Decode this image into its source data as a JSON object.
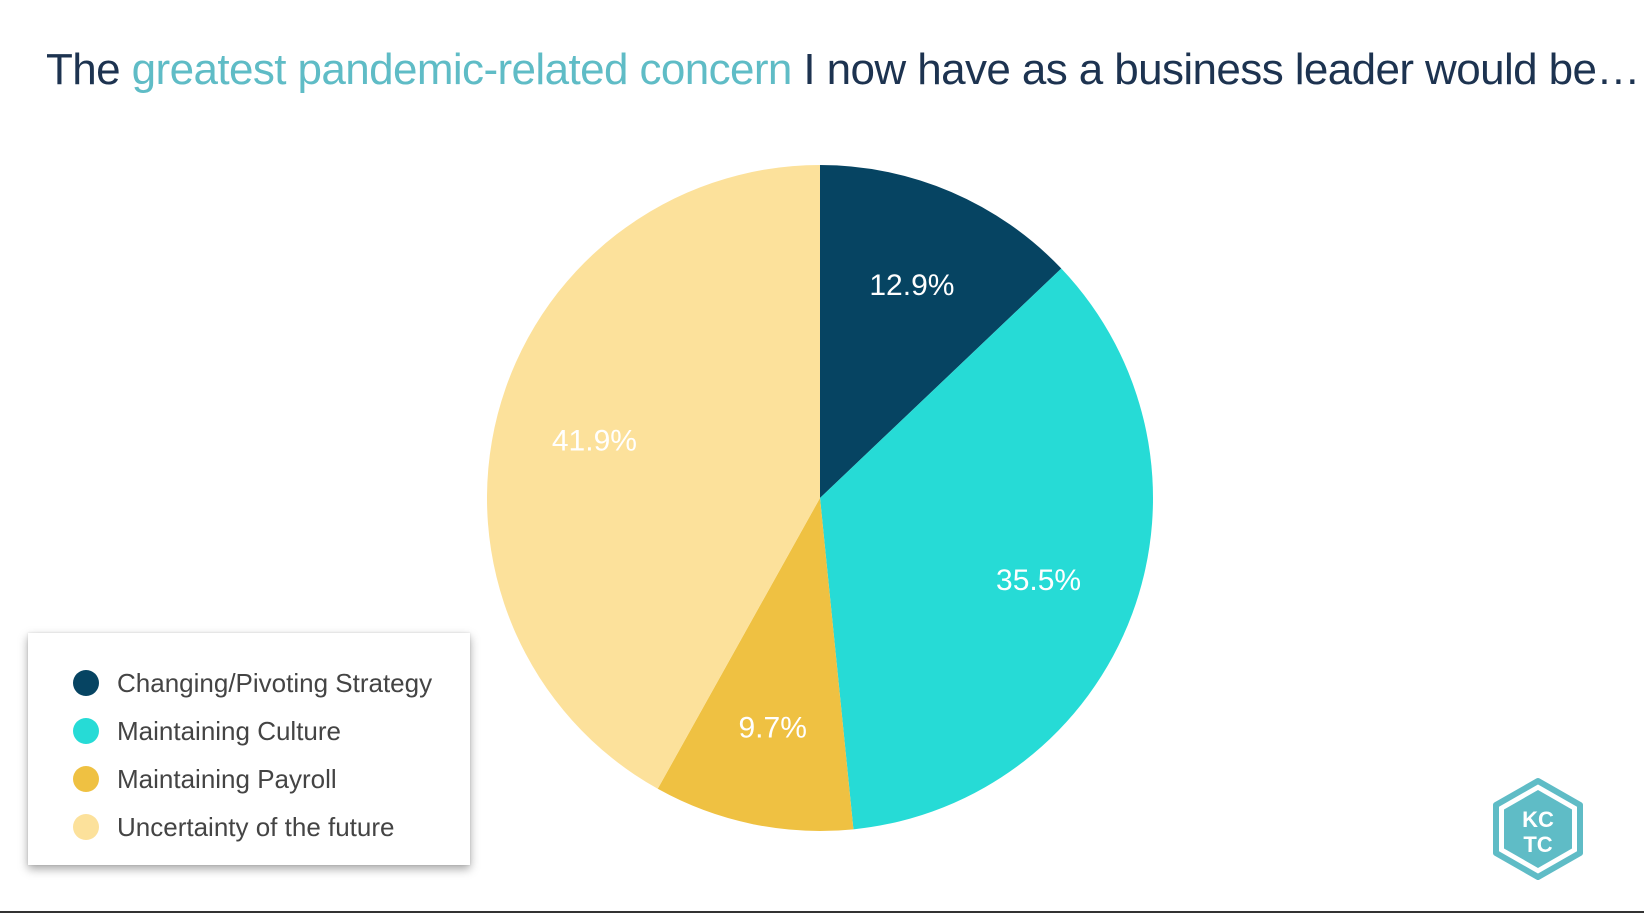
{
  "title": {
    "part1": "The ",
    "highlight": "greatest pandemic-related concern",
    "part2": " I now have as a business leader would be…"
  },
  "colors": {
    "title": "#1d3350",
    "highlight": "#5fbcc6",
    "logo": "#5fbcc6"
  },
  "chart_data": {
    "type": "pie",
    "slices": [
      {
        "label": "Changing/Pivoting Strategy",
        "value": 12.9,
        "display": "12.9%",
        "color": "#064462"
      },
      {
        "label": "Maintaining Culture",
        "value": 35.5,
        "display": "35.5%",
        "color": "#26dbd6"
      },
      {
        "label": "Maintaining Payroll",
        "value": 9.7,
        "display": "9.7%",
        "color": "#efc142"
      },
      {
        "label": "Uncertainty of the future",
        "value": 41.9,
        "display": "41.9%",
        "color": "#fce19b"
      }
    ],
    "legend_position": "bottom-left"
  },
  "logo": {
    "line1": "KC",
    "line2": "TC"
  }
}
